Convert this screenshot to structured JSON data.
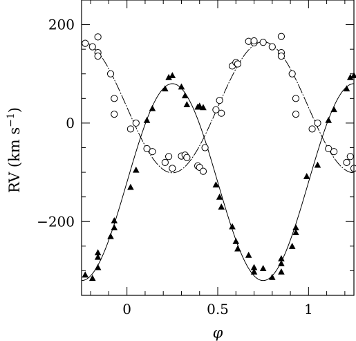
{
  "chart_data": {
    "type": "scatter",
    "title": "",
    "xlabel": "φ",
    "ylabel": "RV (km s",
    "ylabel_sup": "−1",
    "ylabel_close": ")",
    "xlim": [
      -0.25,
      1.25
    ],
    "ylim": [
      -350,
      250
    ],
    "x_ticks": [
      {
        "value": 0,
        "label": "0"
      },
      {
        "value": 0.5,
        "label": "0.5"
      },
      {
        "value": 1,
        "label": "1"
      }
    ],
    "y_ticks": [
      {
        "value": 200,
        "label": "200"
      },
      {
        "value": 0,
        "label": "0"
      },
      {
        "value": -200,
        "label": "−200"
      }
    ],
    "x_minor_step": 0.1,
    "y_minor_step": 50,
    "grid": false,
    "series": [
      {
        "marker": "open-circle",
        "points": [
          [
            -0.23,
            162
          ],
          [
            -0.19,
            155
          ],
          [
            -0.16,
            175
          ],
          [
            -0.16,
            143
          ],
          [
            -0.16,
            136
          ],
          [
            -0.09,
            100
          ],
          [
            -0.07,
            50
          ],
          [
            -0.07,
            18
          ],
          [
            0.02,
            -12
          ],
          [
            0.05,
            0
          ],
          [
            0.11,
            -52
          ],
          [
            0.14,
            -58
          ],
          [
            0.21,
            -80
          ],
          [
            0.23,
            -68
          ],
          [
            0.25,
            -92
          ],
          [
            0.3,
            -67
          ],
          [
            0.32,
            -65
          ],
          [
            0.33,
            -70
          ],
          [
            0.39,
            -87
          ],
          [
            0.4,
            -90
          ],
          [
            0.42,
            -98
          ],
          [
            0.43,
            -50
          ],
          [
            0.49,
            27
          ],
          [
            0.51,
            46
          ],
          [
            0.52,
            20
          ],
          [
            0.58,
            116
          ],
          [
            0.6,
            123
          ],
          [
            0.61,
            120
          ],
          [
            0.67,
            166
          ],
          [
            0.7,
            163
          ],
          [
            0.7,
            167
          ],
          [
            0.75,
            164
          ],
          [
            0.8,
            155
          ],
          [
            0.85,
            176
          ],
          [
            0.85,
            143
          ],
          [
            0.85,
            136
          ],
          [
            0.91,
            100
          ],
          [
            0.93,
            50
          ],
          [
            0.93,
            18
          ],
          [
            1.02,
            -12
          ],
          [
            1.05,
            0
          ],
          [
            1.11,
            -52
          ],
          [
            1.14,
            -58
          ],
          [
            1.21,
            -80
          ],
          [
            1.23,
            -68
          ],
          [
            1.25,
            -92
          ]
        ]
      },
      {
        "marker": "filled-triangle",
        "points": [
          [
            -0.23,
            -308
          ],
          [
            -0.19,
            -315
          ],
          [
            -0.16,
            -263
          ],
          [
            -0.16,
            -272
          ],
          [
            -0.16,
            -293
          ],
          [
            -0.09,
            -230
          ],
          [
            -0.07,
            -198
          ],
          [
            -0.07,
            -212
          ],
          [
            0.02,
            -130
          ],
          [
            0.05,
            -95
          ],
          [
            0.11,
            6
          ],
          [
            0.14,
            30
          ],
          [
            0.21,
            70
          ],
          [
            0.23,
            93
          ],
          [
            0.25,
            97
          ],
          [
            0.3,
            74
          ],
          [
            0.32,
            56
          ],
          [
            0.33,
            38
          ],
          [
            0.39,
            33
          ],
          [
            0.4,
            35
          ],
          [
            0.42,
            32
          ],
          [
            0.49,
            -125
          ],
          [
            0.51,
            -150
          ],
          [
            0.52,
            -170
          ],
          [
            0.58,
            -210
          ],
          [
            0.6,
            -240
          ],
          [
            0.61,
            -255
          ],
          [
            0.67,
            -268
          ],
          [
            0.7,
            -293
          ],
          [
            0.7,
            -302
          ],
          [
            0.75,
            -295
          ],
          [
            0.8,
            -313
          ],
          [
            0.85,
            -302
          ],
          [
            0.85,
            -285
          ],
          [
            0.85,
            -275
          ],
          [
            0.91,
            -250
          ],
          [
            0.93,
            -212
          ],
          [
            0.93,
            -222
          ],
          [
            0.99,
            -108
          ],
          [
            1.05,
            -85
          ],
          [
            1.11,
            6
          ],
          [
            1.14,
            28
          ],
          [
            1.21,
            70
          ],
          [
            1.23,
            93
          ],
          [
            1.25,
            97
          ]
        ]
      }
    ],
    "fits": [
      {
        "style": "dashed",
        "gamma": 32,
        "amplitude": 133,
        "period": 1,
        "phase_max": 0.75
      },
      {
        "style": "solid",
        "gamma": -120,
        "amplitude": 200,
        "period": 1,
        "phase_max": 0.25
      }
    ]
  }
}
